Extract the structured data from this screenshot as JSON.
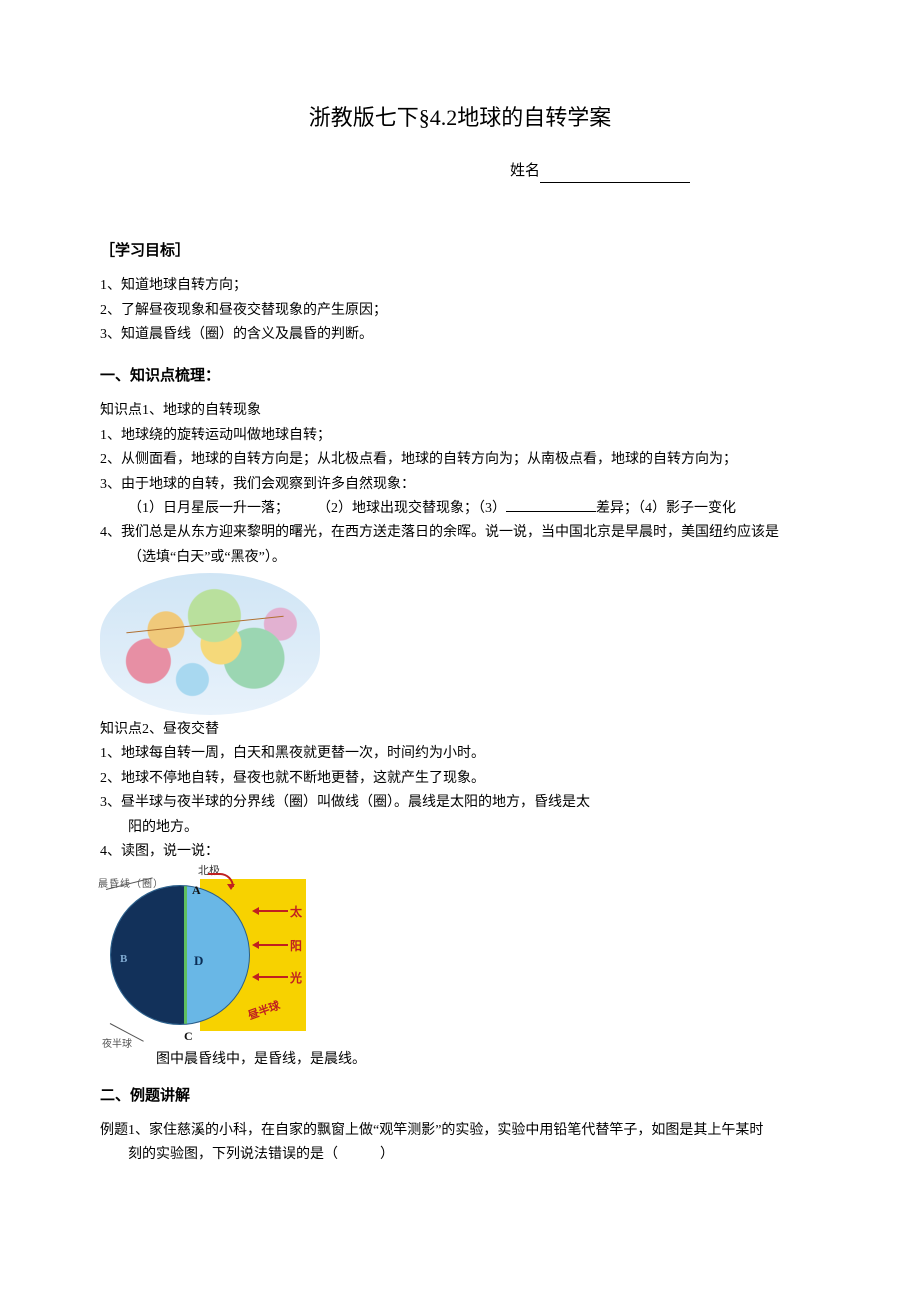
{
  "title": "浙教版七下§4.2地球的自转学案",
  "name_label": "姓名",
  "goals_heading": "［学习目标］",
  "goals": [
    "1、知道地球自转方向；",
    "2、了解昼夜现象和昼夜交替现象的产生原因；",
    "3、知道晨昏线（圈）的含义及晨昏的判断。"
  ],
  "sec1_heading": "一、知识点梳理：",
  "kp1_title": "知识点1、地球的自转现象",
  "kp1_items": [
    "1、地球绕的旋转运动叫做地球自转；",
    "2、从侧面看，地球的自转方向是；从北极点看，地球的自转方向为；从南极点看，地球的自转方向为；",
    "3、由于地球的自转，我们会观察到许多自然现象："
  ],
  "kp1_sub3_a": "（1）日月星辰一升一落；",
  "kp1_sub3_b": "（2）地球出现交替现象；（3）",
  "kp1_sub3_c": "差异；（4）影子一变化",
  "kp1_item4": "4、我们总是从东方迎来黎明的曙光，在西方送走落日的余晖。说一说，当中国北京是早晨时，美国纽约应该是",
  "kp1_item4b": "（选填“白天”或“黑夜”）。",
  "kp2_title": "知识点2、昼夜交替",
  "kp2_items": [
    "1、地球每自转一周，白天和黑夜就更替一次，时间约为小时。",
    "2、地球不停地自转，昼夜也就不断地更替，这就产生了现象。",
    "3、昼半球与夜半球的分界线（圈）叫做线（圈）。晨线是太阳的地方，昏线是太",
    "4、读图，说一说："
  ],
  "kp2_item3b": "阳的地方。",
  "diagram": {
    "top_label": "北极",
    "chb_label": "晨昏线（圈）",
    "A": "A",
    "B": "B",
    "C": "C",
    "D": "D",
    "sun1": "太",
    "sun2": "阳",
    "sun3": "光",
    "day_hs": "昼半球",
    "night_hs": "夜半球"
  },
  "img_caption": "图中晨昏线中，是昏线，是晨线。",
  "sec2_heading": "二、例题讲解",
  "ex1_a": "例题1、家住慈溪的小科，在自家的飘窗上做“观竿测影”的实验，实验中用铅笔代替竿子，如图是其上午某时",
  "ex1_b": "刻的实验图，下列说法错误的是（　　　）"
}
